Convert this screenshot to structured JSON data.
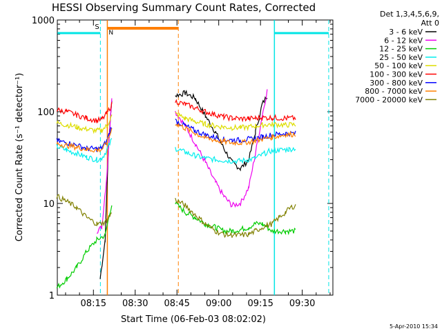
{
  "chart_data": {
    "type": "line",
    "title": "HESSI Observing Summary Count Rates, Corrected",
    "xlabel": "Start Time (06-Feb-03 08:02:02)",
    "ylabel": "Corrected Count Rate (s⁻¹ detector⁻¹)",
    "x_ticks": [
      "08:15",
      "08:30",
      "08:45",
      "09:00",
      "09:15",
      "09:30"
    ],
    "y_ticks": [
      "1",
      "10",
      "100",
      "1000"
    ],
    "y_scale": "log",
    "ylim": [
      1,
      1000
    ],
    "xlim": [
      "08:02:02",
      "09:41"
    ],
    "grid": false,
    "legend_position": "right",
    "legend_header": [
      "Det 1,3,4,5,6,9,",
      "Att 0"
    ],
    "series": [
      {
        "name": "3 - 6 keV",
        "color": "#000000",
        "points": [
          [
            8.29,
            1.5
          ],
          [
            8.32,
            4
          ],
          [
            8.34,
            40
          ],
          [
            8.36,
            140
          ],
          [
            8.66,
            null
          ],
          [
            8.74,
            150
          ],
          [
            8.8,
            160
          ],
          [
            8.86,
            140
          ],
          [
            8.92,
            90
          ],
          [
            8.98,
            60
          ],
          [
            9.03,
            40
          ],
          [
            9.08,
            28
          ],
          [
            9.13,
            24
          ],
          [
            9.18,
            30
          ],
          [
            9.22,
            60
          ],
          [
            9.26,
            120
          ],
          [
            9.29,
            150
          ],
          [
            9.33,
            null
          ]
        ]
      },
      {
        "name": "6 - 12 keV",
        "color": "#ee00ee",
        "points": [
          [
            8.27,
            5
          ],
          [
            8.3,
            5.5
          ],
          [
            8.33,
            20
          ],
          [
            8.36,
            150
          ],
          [
            8.66,
            null
          ],
          [
            8.74,
            100
          ],
          [
            8.8,
            70
          ],
          [
            8.86,
            45
          ],
          [
            8.92,
            28
          ],
          [
            8.98,
            17
          ],
          [
            9.03,
            12
          ],
          [
            9.08,
            9.5
          ],
          [
            9.13,
            10
          ],
          [
            9.18,
            15
          ],
          [
            9.22,
            35
          ],
          [
            9.26,
            90
          ],
          [
            9.29,
            170
          ],
          [
            9.33,
            null
          ]
        ]
      },
      {
        "name": "12 - 25 keV",
        "color": "#00cc00",
        "points": [
          [
            8.03,
            1.2
          ],
          [
            8.09,
            1.5
          ],
          [
            8.15,
            2
          ],
          [
            8.21,
            3
          ],
          [
            8.27,
            4
          ],
          [
            8.32,
            4.5
          ],
          [
            8.36,
            10
          ],
          [
            8.66,
            null
          ],
          [
            8.74,
            10
          ],
          [
            8.8,
            8
          ],
          [
            8.86,
            7
          ],
          [
            8.92,
            6
          ],
          [
            8.98,
            5.5
          ],
          [
            9.03,
            5
          ],
          [
            9.08,
            5
          ],
          [
            9.13,
            5.2
          ],
          [
            9.18,
            5.5
          ],
          [
            9.22,
            6
          ],
          [
            9.26,
            6
          ],
          [
            9.32,
            5
          ],
          [
            9.4,
            5
          ],
          [
            9.46,
            5
          ]
        ]
      },
      {
        "name": "25 - 50 keV",
        "color": "#00eeee",
        "points": [
          [
            8.03,
            42
          ],
          [
            8.09,
            38
          ],
          [
            8.15,
            35
          ],
          [
            8.21,
            32
          ],
          [
            8.27,
            30
          ],
          [
            8.3,
            31
          ],
          [
            8.33,
            38
          ],
          [
            8.36,
            50
          ],
          [
            8.66,
            null
          ],
          [
            8.74,
            40
          ],
          [
            8.8,
            36
          ],
          [
            8.86,
            33
          ],
          [
            8.92,
            31
          ],
          [
            8.98,
            30
          ],
          [
            9.03,
            29.5
          ],
          [
            9.08,
            29
          ],
          [
            9.13,
            29
          ],
          [
            9.18,
            30
          ],
          [
            9.22,
            31
          ],
          [
            9.26,
            34
          ],
          [
            9.3,
            37
          ],
          [
            9.36,
            38
          ],
          [
            9.42,
            39
          ],
          [
            9.46,
            40
          ]
        ]
      },
      {
        "name": "50 - 100 keV",
        "color": "#dddd00",
        "points": [
          [
            8.03,
            75
          ],
          [
            8.09,
            72
          ],
          [
            8.15,
            68
          ],
          [
            8.21,
            64
          ],
          [
            8.27,
            62
          ],
          [
            8.3,
            63
          ],
          [
            8.33,
            70
          ],
          [
            8.36,
            90
          ],
          [
            8.66,
            null
          ],
          [
            8.74,
            95
          ],
          [
            8.8,
            85
          ],
          [
            8.86,
            78
          ],
          [
            8.92,
            73
          ],
          [
            8.98,
            70
          ],
          [
            9.03,
            68
          ],
          [
            9.08,
            67
          ],
          [
            9.13,
            67
          ],
          [
            9.18,
            68
          ],
          [
            9.22,
            70
          ],
          [
            9.26,
            72
          ],
          [
            9.32,
            73
          ],
          [
            9.4,
            72
          ],
          [
            9.46,
            72
          ]
        ]
      },
      {
        "name": "100 - 300 keV",
        "color": "#ff0000",
        "points": [
          [
            8.03,
            105
          ],
          [
            8.09,
            100
          ],
          [
            8.15,
            92
          ],
          [
            8.21,
            85
          ],
          [
            8.27,
            80
          ],
          [
            8.3,
            82
          ],
          [
            8.33,
            95
          ],
          [
            8.36,
            120
          ],
          [
            8.66,
            null
          ],
          [
            8.74,
            130
          ],
          [
            8.8,
            120
          ],
          [
            8.86,
            110
          ],
          [
            8.92,
            100
          ],
          [
            8.98,
            93
          ],
          [
            9.03,
            88
          ],
          [
            9.08,
            85
          ],
          [
            9.13,
            84
          ],
          [
            9.18,
            84
          ],
          [
            9.22,
            85
          ],
          [
            9.26,
            86
          ],
          [
            9.32,
            86
          ],
          [
            9.4,
            85
          ],
          [
            9.46,
            85
          ]
        ]
      },
      {
        "name": "300 - 800 keV",
        "color": "#0000ff",
        "points": [
          [
            8.03,
            48
          ],
          [
            8.09,
            46
          ],
          [
            8.15,
            43
          ],
          [
            8.21,
            40
          ],
          [
            8.27,
            39
          ],
          [
            8.3,
            40
          ],
          [
            8.33,
            48
          ],
          [
            8.36,
            70
          ],
          [
            8.66,
            null
          ],
          [
            8.74,
            80
          ],
          [
            8.8,
            70
          ],
          [
            8.86,
            62
          ],
          [
            8.92,
            56
          ],
          [
            8.98,
            52
          ],
          [
            9.03,
            50
          ],
          [
            9.08,
            49
          ],
          [
            9.13,
            49
          ],
          [
            9.18,
            50
          ],
          [
            9.22,
            51
          ],
          [
            9.26,
            53
          ],
          [
            9.32,
            56
          ],
          [
            9.4,
            58
          ],
          [
            9.46,
            58
          ]
        ]
      },
      {
        "name": "800 - 7000 keV",
        "color": "#ff7f00",
        "points": [
          [
            8.03,
            45
          ],
          [
            8.09,
            43
          ],
          [
            8.15,
            41
          ],
          [
            8.21,
            39
          ],
          [
            8.27,
            38
          ],
          [
            8.3,
            39
          ],
          [
            8.33,
            45
          ],
          [
            8.36,
            65
          ],
          [
            8.66,
            null
          ],
          [
            8.74,
            75
          ],
          [
            8.8,
            66
          ],
          [
            8.86,
            58
          ],
          [
            8.92,
            52
          ],
          [
            8.98,
            49
          ],
          [
            9.03,
            47
          ],
          [
            9.08,
            46
          ],
          [
            9.13,
            46
          ],
          [
            9.18,
            47
          ],
          [
            9.22,
            48
          ],
          [
            9.26,
            50
          ],
          [
            9.32,
            53
          ],
          [
            9.4,
            56
          ],
          [
            9.46,
            57
          ]
        ]
      },
      {
        "name": "7000 - 20000 keV",
        "color": "#808000",
        "points": [
          [
            8.03,
            12
          ],
          [
            8.09,
            10.5
          ],
          [
            8.15,
            9
          ],
          [
            8.21,
            7
          ],
          [
            8.27,
            6
          ],
          [
            8.3,
            6
          ],
          [
            8.33,
            6.5
          ],
          [
            8.36,
            8
          ],
          [
            8.66,
            null
          ],
          [
            8.74,
            11
          ],
          [
            8.8,
            9.5
          ],
          [
            8.86,
            7.5
          ],
          [
            8.92,
            6
          ],
          [
            8.98,
            5
          ],
          [
            9.03,
            4.6
          ],
          [
            9.08,
            4.5
          ],
          [
            9.13,
            4.5
          ],
          [
            9.18,
            4.6
          ],
          [
            9.22,
            5
          ],
          [
            9.26,
            5.5
          ],
          [
            9.32,
            6
          ],
          [
            9.36,
            7
          ],
          [
            9.4,
            8
          ],
          [
            9.43,
            9
          ],
          [
            9.46,
            9.5
          ]
        ]
      }
    ],
    "annotations": {
      "flags": [
        {
          "label": "S",
          "color": "#ff7f00"
        },
        {
          "label": "N",
          "color": "#00cccc"
        }
      ],
      "footer_date": "5-Apr-2010 15:34"
    }
  }
}
